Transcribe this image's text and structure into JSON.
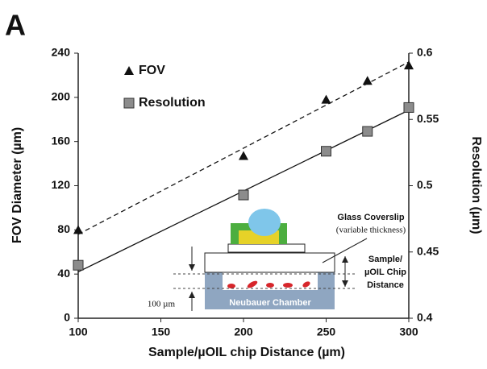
{
  "panel_label": "A",
  "chart_data": {
    "type": "scatter",
    "x_label": "Sample/µOIL chip Distance (µm)",
    "y_label": "FOV Diameter (µm)",
    "y2_label": "Resolution (µm)",
    "xlim": [
      100,
      300
    ],
    "xticks": [
      100,
      150,
      200,
      250,
      300
    ],
    "ylim": [
      0,
      240
    ],
    "yticks": [
      0,
      40,
      80,
      120,
      160,
      200,
      240
    ],
    "y2lim": [
      0.4,
      0.6
    ],
    "y2ticks": [
      0.4,
      0.45,
      0.5,
      0.55,
      0.6
    ],
    "legend": "upper left",
    "series": [
      {
        "name": "FOV",
        "marker": "triangle",
        "color": "#111111",
        "x": [
          100,
          200,
          250,
          275,
          300
        ],
        "values": [
          80,
          147,
          198,
          215,
          229
        ]
      },
      {
        "name": "Resolution",
        "marker": "square",
        "color": "#8c8c8c",
        "axis": "y2",
        "x": [
          100,
          200,
          250,
          275,
          300
        ],
        "values": [
          0.44,
          0.493,
          0.526,
          0.541,
          0.559
        ]
      }
    ],
    "fit_lines": [
      {
        "dashed": true,
        "x": [
          100,
          300
        ],
        "values": [
          76,
          232
        ]
      },
      {
        "dashed": false,
        "axis": "y2",
        "x": [
          100,
          300
        ],
        "values": [
          0.435,
          0.557
        ]
      }
    ]
  },
  "inset": {
    "coverslip": [
      "Glass Coverslip",
      "(variable thickness)"
    ],
    "distance": [
      "Sample/",
      "µOIL Chip",
      "Distance"
    ],
    "chamber": "Neubauer  Chamber",
    "spacing": "100 µm"
  }
}
